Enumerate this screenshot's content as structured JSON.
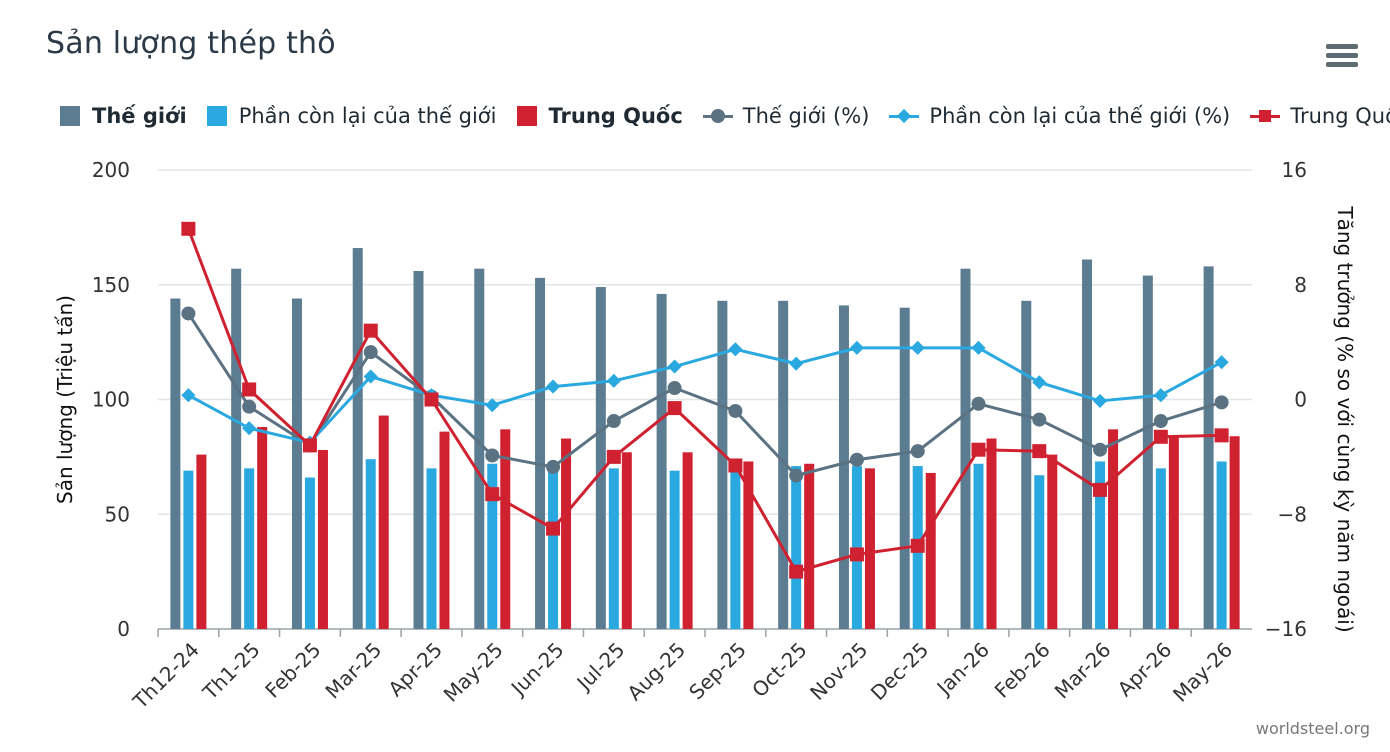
{
  "title": "Sản lượng thép thô",
  "credit": "worldsteel.org",
  "menu_icon": "hamburger-menu-icon",
  "colors": {
    "world": "#5c7d91",
    "rest": "#2aa8e0",
    "china": "#cf2130",
    "world_line": "#5a7282",
    "rest_line": "#2aa8e0",
    "china_line": "#cf2130",
    "grid": "#e2e5e8"
  },
  "legend": [
    {
      "label": "Thế giới",
      "kind": "bar",
      "color": "#5c7d91",
      "bold": true
    },
    {
      "label": "Phần còn lại của thế giới",
      "kind": "bar",
      "color": "#2aa8e0",
      "bold": false
    },
    {
      "label": "Trung Quốc",
      "kind": "bar",
      "color": "#cf2130",
      "bold": true
    },
    {
      "label": "Thế giới (%)",
      "kind": "line",
      "marker": "circle",
      "color": "#5a7282",
      "bold": false
    },
    {
      "label": "Phần còn lại của thế giới (%)",
      "kind": "line",
      "marker": "diamond",
      "color": "#2aa8e0",
      "bold": false
    },
    {
      "label": "Trung Quốc (%)",
      "kind": "line",
      "marker": "square",
      "color": "#cf2130",
      "bold": false
    }
  ],
  "chart_data": {
    "type": "bar",
    "title": "Sản lượng thép thô",
    "categories": [
      "Th12-24",
      "Th1-25",
      "Feb-25",
      "Mar-25",
      "Apr-25",
      "May-25",
      "Jun-25",
      "Jul-25",
      "Aug-25",
      "Sep-25",
      "Oct-25",
      "Nov-25",
      "Dec-25",
      "Jan-26",
      "Feb-26",
      "Mar-26",
      "Apr-26",
      "May-26"
    ],
    "ylabel": "Sản lượng (Triệu tấn)",
    "y2label": "Tăng trưởng (% so với cùng kỳ năm ngoái)",
    "ylim": [
      0,
      200
    ],
    "y2lim": [
      -16,
      16
    ],
    "yticks": [
      0,
      50,
      100,
      150,
      200
    ],
    "y2ticks": [
      -16,
      -8,
      0,
      8,
      16
    ],
    "grid": true,
    "legend_position": "top",
    "series": [
      {
        "name": "Thế giới",
        "type": "bar",
        "axis": "left",
        "color": "#5c7d91",
        "values": [
          144,
          157,
          144,
          166,
          156,
          157,
          153,
          149,
          146,
          143,
          143,
          141,
          140,
          157,
          143,
          161,
          154,
          158
        ]
      },
      {
        "name": "Phần còn lại của thế giới",
        "type": "bar",
        "axis": "left",
        "color": "#2aa8e0",
        "values": [
          69,
          70,
          66,
          74,
          70,
          72,
          71,
          70,
          69,
          71,
          71,
          71,
          71,
          72,
          67,
          73,
          70,
          73
        ]
      },
      {
        "name": "Trung Quốc",
        "type": "bar",
        "axis": "left",
        "color": "#cf2130",
        "values": [
          76,
          88,
          78,
          93,
          86,
          87,
          83,
          77,
          77,
          73,
          72,
          70,
          68,
          83,
          76,
          87,
          84,
          84
        ]
      },
      {
        "name": "Thế giới (%)",
        "type": "line",
        "axis": "right",
        "marker": "circle",
        "color": "#5a7282",
        "values": [
          6.0,
          -0.5,
          -3.2,
          3.3,
          0.2,
          -3.9,
          -4.7,
          -1.5,
          0.8,
          -0.8,
          -5.3,
          -4.2,
          -3.6,
          -0.3,
          -1.4,
          -3.5,
          -1.5,
          -0.2
        ]
      },
      {
        "name": "Phần còn lại của thế giới (%)",
        "type": "line",
        "axis": "right",
        "marker": "diamond",
        "color": "#2aa8e0",
        "values": [
          0.3,
          -2.0,
          -3.0,
          1.6,
          0.3,
          -0.4,
          0.9,
          1.3,
          2.3,
          3.5,
          2.5,
          3.6,
          3.6,
          3.6,
          1.2,
          -0.1,
          0.3,
          2.6
        ]
      },
      {
        "name": "Trung Quốc (%)",
        "type": "line",
        "axis": "right",
        "marker": "square",
        "color": "#cf2130",
        "values": [
          11.9,
          0.7,
          -3.2,
          4.8,
          0.0,
          -6.6,
          -9.0,
          -4.0,
          -0.6,
          -4.6,
          -12.0,
          -10.8,
          -10.2,
          -3.5,
          -3.6,
          -6.3,
          -2.6,
          -2.5
        ]
      }
    ]
  }
}
